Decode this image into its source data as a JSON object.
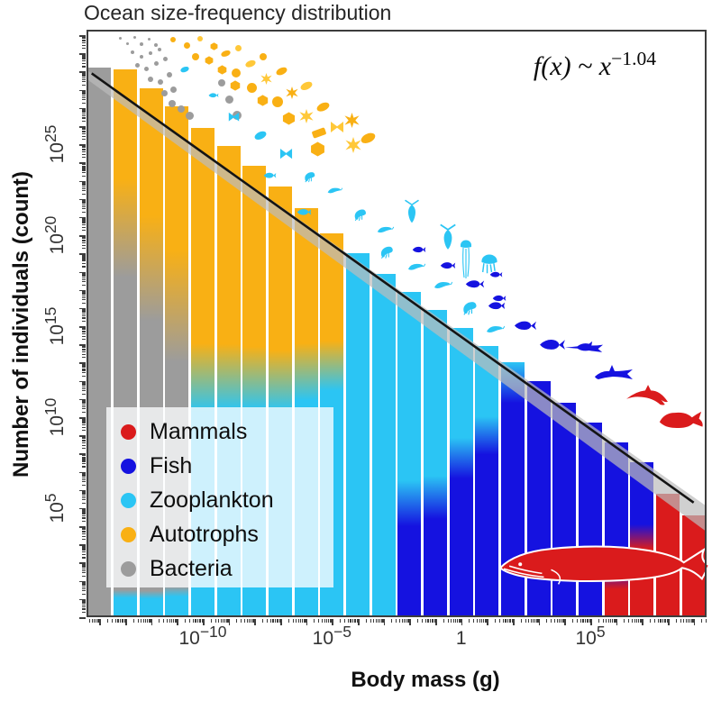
{
  "title": "Ocean size-frequency distribution",
  "equation": {
    "body": "f(x) ~ x",
    "exponent": "−1.04"
  },
  "colors": {
    "mammals": "#DA1B1C",
    "fish": "#1512E0",
    "zooplankton": "#2BC5F4",
    "autotrophs": "#F9B014",
    "bacteria": "#9C9C9C",
    "autotrophs_light": "#FFC839",
    "trend_line": "#141414",
    "trend_band": "#BCBCBC",
    "axis": "#3d3d3d"
  },
  "legend": {
    "items": [
      {
        "label": "Mammals",
        "color_key": "mammals"
      },
      {
        "label": "Fish",
        "color_key": "fish"
      },
      {
        "label": "Zooplankton",
        "color_key": "zooplankton"
      },
      {
        "label": "Autotrophs",
        "color_key": "autotrophs"
      },
      {
        "label": "Bacteria",
        "color_key": "bacteria"
      }
    ]
  },
  "axes": {
    "x": {
      "label": "Body mass (g)"
    },
    "y": {
      "label": "Number of individuals (count)"
    }
  },
  "chart_data": {
    "type": "bar",
    "title": "Ocean size-frequency distribution",
    "xlabel": "Body mass (g)",
    "ylabel": "Number of individuals (count)",
    "x_scale": "log10",
    "y_scale": "log10",
    "x_log_range": [
      -14.5,
      9.5
    ],
    "y_log_range": [
      -1,
      31.3
    ],
    "bin_width_decades": 1,
    "x_ticks": [
      {
        "log": -10,
        "label": "10^−10"
      },
      {
        "log": -5,
        "label": "10^−5"
      },
      {
        "log": 0,
        "label": "1"
      },
      {
        "log": 5,
        "label": "10^5"
      }
    ],
    "y_ticks": [
      {
        "log": 5,
        "label": "10^5"
      },
      {
        "log": 10,
        "label": "10^10"
      },
      {
        "log": 15,
        "label": "10^15"
      },
      {
        "log": 20,
        "label": "10^20"
      },
      {
        "log": 25,
        "label": "10^25"
      }
    ],
    "bars": [
      {
        "mass_log_center": -14,
        "top_log_count": 29.2,
        "stops": [
          [
            "bacteria",
            0
          ],
          [
            "bacteria",
            100
          ]
        ]
      },
      {
        "mass_log_center": -13,
        "top_log_count": 29.1,
        "stops": [
          [
            "autotrophs",
            0
          ],
          [
            "autotrophs",
            20
          ],
          [
            "bacteria",
            38
          ],
          [
            "bacteria",
            95
          ],
          [
            "zooplankton",
            96.5
          ],
          [
            "zooplankton",
            100
          ]
        ]
      },
      {
        "mass_log_center": -12,
        "top_log_count": 28.1,
        "stops": [
          [
            "autotrophs",
            0
          ],
          [
            "autotrophs",
            24
          ],
          [
            "bacteria",
            44
          ],
          [
            "bacteria",
            95
          ],
          [
            "zooplankton",
            96.5
          ],
          [
            "zooplankton",
            100
          ]
        ]
      },
      {
        "mass_log_center": -11,
        "top_log_count": 27.1,
        "stops": [
          [
            "autotrophs",
            0
          ],
          [
            "autotrophs",
            28
          ],
          [
            "bacteria",
            50
          ],
          [
            "bacteria",
            94
          ],
          [
            "zooplankton",
            96
          ],
          [
            "zooplankton",
            100
          ]
        ]
      },
      {
        "mass_log_center": -10,
        "top_log_count": 25.9,
        "stops": [
          [
            "autotrophs",
            0
          ],
          [
            "autotrophs",
            44
          ],
          [
            "zooplankton",
            58
          ],
          [
            "zooplankton",
            100
          ]
        ]
      },
      {
        "mass_log_center": -9,
        "top_log_count": 24.9,
        "stops": [
          [
            "autotrophs",
            0
          ],
          [
            "autotrophs",
            42
          ],
          [
            "zooplankton",
            56
          ],
          [
            "zooplankton",
            100
          ]
        ]
      },
      {
        "mass_log_center": -8,
        "top_log_count": 23.8,
        "stops": [
          [
            "autotrophs",
            0
          ],
          [
            "autotrophs",
            40
          ],
          [
            "zooplankton",
            54
          ],
          [
            "zooplankton",
            100
          ]
        ]
      },
      {
        "mass_log_center": -7,
        "top_log_count": 22.7,
        "stops": [
          [
            "autotrophs",
            0
          ],
          [
            "autotrophs",
            38
          ],
          [
            "zooplankton",
            52
          ],
          [
            "zooplankton",
            100
          ]
        ]
      },
      {
        "mass_log_center": -6,
        "top_log_count": 21.5,
        "stops": [
          [
            "autotrophs",
            0
          ],
          [
            "autotrophs",
            33
          ],
          [
            "zooplankton",
            47
          ],
          [
            "zooplankton",
            100
          ]
        ]
      },
      {
        "mass_log_center": -5,
        "top_log_count": 20.1,
        "stops": [
          [
            "autotrophs",
            0
          ],
          [
            "autotrophs",
            28
          ],
          [
            "zooplankton",
            41
          ],
          [
            "zooplankton",
            100
          ]
        ]
      },
      {
        "mass_log_center": -4,
        "top_log_count": 19.0,
        "stops": [
          [
            "zooplankton",
            0
          ],
          [
            "zooplankton",
            100
          ]
        ]
      },
      {
        "mass_log_center": -3,
        "top_log_count": 17.9,
        "stops": [
          [
            "zooplankton",
            0
          ],
          [
            "zooplankton",
            100
          ]
        ]
      },
      {
        "mass_log_center": -2,
        "top_log_count": 16.9,
        "stops": [
          [
            "zooplankton",
            0
          ],
          [
            "zooplankton",
            58
          ],
          [
            "fish",
            72
          ],
          [
            "fish",
            100
          ]
        ]
      },
      {
        "mass_log_center": -1,
        "top_log_count": 15.9,
        "stops": [
          [
            "zooplankton",
            0
          ],
          [
            "zooplankton",
            54
          ],
          [
            "fish",
            68
          ],
          [
            "fish",
            100
          ]
        ]
      },
      {
        "mass_log_center": 0,
        "top_log_count": 14.9,
        "stops": [
          [
            "zooplankton",
            0
          ],
          [
            "zooplankton",
            38
          ],
          [
            "fish",
            52
          ],
          [
            "fish",
            100
          ]
        ]
      },
      {
        "mass_log_center": 1,
        "top_log_count": 13.9,
        "stops": [
          [
            "zooplankton",
            0
          ],
          [
            "zooplankton",
            26
          ],
          [
            "fish",
            40
          ],
          [
            "fish",
            100
          ]
        ]
      },
      {
        "mass_log_center": 2,
        "top_log_count": 13.0,
        "stops": [
          [
            "zooplankton",
            0
          ],
          [
            "fish",
            16
          ],
          [
            "fish",
            100
          ]
        ]
      },
      {
        "mass_log_center": 3,
        "top_log_count": 12.0,
        "stops": [
          [
            "fish",
            0
          ],
          [
            "fish",
            100
          ]
        ]
      },
      {
        "mass_log_center": 4,
        "top_log_count": 10.8,
        "stops": [
          [
            "fish",
            0
          ],
          [
            "fish",
            100
          ]
        ]
      },
      {
        "mass_log_center": 5,
        "top_log_count": 9.7,
        "stops": [
          [
            "fish",
            0
          ],
          [
            "fish",
            100
          ]
        ]
      },
      {
        "mass_log_center": 6,
        "top_log_count": 8.6,
        "stops": [
          [
            "fish",
            0
          ],
          [
            "fish",
            70
          ],
          [
            "mammals",
            84
          ],
          [
            "mammals",
            100
          ]
        ]
      },
      {
        "mass_log_center": 7,
        "top_log_count": 7.5,
        "stops": [
          [
            "fish",
            0
          ],
          [
            "fish",
            40
          ],
          [
            "mammals",
            56
          ],
          [
            "mammals",
            100
          ]
        ]
      },
      {
        "mass_log_center": 8,
        "top_log_count": 5.8,
        "stops": [
          [
            "mammals",
            0
          ],
          [
            "mammals",
            100
          ]
        ]
      },
      {
        "mass_log_center": 9,
        "top_log_count": 4.6,
        "stops": [
          [
            "mammals",
            0
          ],
          [
            "mammals",
            100
          ]
        ]
      }
    ],
    "trend": {
      "exponent": -1.04,
      "line": {
        "x1": -14.3,
        "y1": 28.9,
        "x2": 9.0,
        "y2": 5.3
      },
      "band": {
        "x1": -14.45,
        "y1_top": 29.05,
        "y1_bot": 28.55,
        "x2": 9.45,
        "y2_top": 5.15,
        "y2_bot": 3.75
      }
    }
  },
  "silhouettes": [
    [
      "dot",
      133,
      42,
      3,
      "bacteria"
    ],
    [
      "dot",
      141,
      48,
      3,
      "bacteria"
    ],
    [
      "dot",
      149,
      41,
      3,
      "bacteria"
    ],
    [
      "dot",
      157,
      49,
      4,
      "bacteria"
    ],
    [
      "dot",
      165,
      43,
      3,
      "bacteria"
    ],
    [
      "dot",
      173,
      50,
      4,
      "bacteria"
    ],
    [
      "dot",
      147,
      58,
      4,
      "bacteria"
    ],
    [
      "dot",
      157,
      63,
      4,
      "bacteria"
    ],
    [
      "dot",
      167,
      59,
      4,
      "bacteria"
    ],
    [
      "dot",
      177,
      55,
      4,
      "bacteria"
    ],
    [
      "dot",
      152,
      72,
      5,
      "bacteria"
    ],
    [
      "dot",
      162,
      76,
      5,
      "bacteria"
    ],
    [
      "dot",
      173,
      70,
      5,
      "bacteria"
    ],
    [
      "dot",
      183,
      65,
      5,
      "bacteria"
    ],
    [
      "dot",
      167,
      88,
      6,
      "bacteria"
    ],
    [
      "dot",
      178,
      91,
      6,
      "bacteria"
    ],
    [
      "dot",
      188,
      83,
      6,
      "bacteria"
    ],
    [
      "dot",
      182,
      103,
      7,
      "bacteria"
    ],
    [
      "dot",
      192,
      99,
      7,
      "bacteria"
    ],
    [
      "dot",
      191,
      115,
      8,
      "bacteria"
    ],
    [
      "dot",
      201,
      121,
      8,
      "bacteria"
    ],
    [
      "dot",
      210,
      128,
      9,
      "bacteria"
    ],
    [
      "dot",
      246,
      92,
      8,
      "bacteria"
    ],
    [
      "dot",
      254,
      110,
      9,
      "bacteria"
    ],
    [
      "dot",
      263,
      128,
      10,
      "bacteria"
    ],
    [
      "dot",
      192,
      44,
      6,
      "autotrophs"
    ],
    [
      "dot",
      207,
      50,
      7,
      "autotrophs"
    ],
    [
      "dot",
      222,
      43,
      6,
      "autotrophs_light"
    ],
    [
      "hex",
      237,
      51,
      9,
      "autotrophs"
    ],
    [
      "dot",
      217,
      63,
      8,
      "autotrophs"
    ],
    [
      "hex",
      232,
      67,
      10,
      "autotrophs"
    ],
    [
      "oval",
      250,
      59,
      11,
      "autotrophs",
      -20
    ],
    [
      "dot",
      264,
      53,
      7,
      "autotrophs_light"
    ],
    [
      "hex",
      246,
      77,
      11,
      "autotrophs"
    ],
    [
      "dot",
      262,
      81,
      10,
      "autotrophs"
    ],
    [
      "oval",
      278,
      71,
      12,
      "autotrophs_light",
      -20
    ],
    [
      "dot",
      292,
      63,
      8,
      "autotrophs"
    ],
    [
      "hex",
      261,
      95,
      12,
      "autotrophs"
    ],
    [
      "dot",
      279,
      97,
      11,
      "autotrophs"
    ],
    [
      "star",
      295,
      87,
      13,
      "autotrophs_light"
    ],
    [
      "oval",
      312,
      79,
      13,
      "autotrophs",
      -25
    ],
    [
      "hex",
      291,
      111,
      13,
      "autotrophs"
    ],
    [
      "dot",
      308,
      113,
      12,
      "autotrophs"
    ],
    [
      "star",
      324,
      103,
      14,
      "autotrophs"
    ],
    [
      "oval",
      340,
      95,
      14,
      "autotrophs_light",
      -25
    ],
    [
      "hex",
      320,
      131,
      15,
      "autotrophs"
    ],
    [
      "star",
      340,
      129,
      16,
      "autotrophs_light"
    ],
    [
      "oval",
      358,
      119,
      15,
      "autotrophs",
      -25
    ],
    [
      "rect",
      354,
      147,
      16,
      "autotrophs",
      -20
    ],
    [
      "bowtie",
      374,
      141,
      16,
      "autotrophs_light"
    ],
    [
      "star",
      390,
      133,
      17,
      "autotrophs"
    ],
    [
      "hex",
      352,
      165,
      17,
      "autotrophs"
    ],
    [
      "oval",
      408,
      153,
      17,
      "autotrophs",
      -25
    ],
    [
      "star",
      392,
      161,
      18,
      "autotrophs_light"
    ],
    [
      "oval",
      205,
      77,
      10,
      "zooplankton",
      -20
    ],
    [
      "fish",
      237,
      106,
      12,
      "zooplankton"
    ],
    [
      "bowtie",
      259,
      130,
      13,
      "zooplankton"
    ],
    [
      "oval",
      289,
      150,
      14,
      "zooplankton",
      -25
    ],
    [
      "bowtie",
      317,
      171,
      15,
      "zooplankton"
    ],
    [
      "fish",
      299,
      195,
      15,
      "zooplankton"
    ],
    [
      "shrimp",
      343,
      196,
      17,
      "zooplankton"
    ],
    [
      "krill",
      371,
      212,
      18,
      "zooplankton"
    ],
    [
      "fish",
      337,
      235,
      17,
      "zooplankton"
    ],
    [
      "shrimp",
      399,
      237,
      19,
      "zooplankton"
    ],
    [
      "krill",
      427,
      255,
      20,
      "zooplankton"
    ],
    [
      "copepod",
      457,
      235,
      20,
      "zooplankton"
    ],
    [
      "shrimp",
      429,
      279,
      20,
      "zooplankton"
    ],
    [
      "krill",
      461,
      297,
      21,
      "zooplankton"
    ],
    [
      "copepod",
      497,
      263,
      22,
      "zooplankton"
    ],
    [
      "jellylong",
      517,
      288,
      16,
      "zooplankton"
    ],
    [
      "krill",
      491,
      317,
      22,
      "zooplankton"
    ],
    [
      "jelly",
      543,
      292,
      22,
      "zooplankton"
    ],
    [
      "shrimp",
      521,
      341,
      22,
      "zooplankton"
    ],
    [
      "krill",
      549,
      366,
      22,
      "zooplankton"
    ],
    [
      "fish",
      465,
      277,
      16,
      "fish"
    ],
    [
      "fish",
      497,
      295,
      18,
      "fish"
    ],
    [
      "tuna",
      527,
      315,
      22,
      "fish"
    ],
    [
      "fish",
      551,
      339,
      20,
      "fish"
    ],
    [
      "tuna",
      583,
      361,
      26,
      "fish"
    ],
    [
      "tuna",
      613,
      383,
      30,
      "fish"
    ],
    [
      "sword",
      648,
      386,
      44,
      "fish"
    ],
    [
      "shark",
      681,
      413,
      46,
      "fish"
    ],
    [
      "fish",
      550,
      305,
      15,
      "fish"
    ],
    [
      "fish",
      554,
      331,
      16,
      "fish"
    ],
    [
      "dolphin",
      718,
      438,
      50,
      "mammals"
    ],
    [
      "manatee",
      755,
      466,
      54,
      "mammals"
    ],
    [
      "whale",
      672,
      629,
      242,
      "mammals"
    ]
  ]
}
